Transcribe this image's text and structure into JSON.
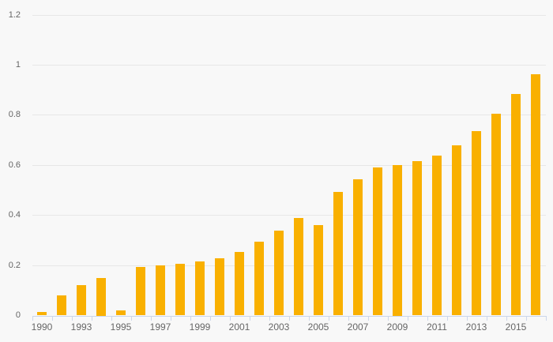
{
  "chart_data": {
    "type": "bar",
    "title": "",
    "xlabel": "",
    "ylabel": "",
    "x_categories": [
      "1990",
      "1992",
      "1993",
      "1994",
      "1995",
      "1996",
      "1997",
      "1998",
      "1999",
      "2000",
      "2001",
      "2002",
      "2003",
      "2004",
      "2005",
      "2006",
      "2007",
      "2008",
      "2009",
      "2010",
      "2011",
      "2012",
      "2013",
      "2014",
      "2015",
      "2016"
    ],
    "values": [
      0.015,
      0.08,
      0.12,
      0.15,
      0.02,
      0.195,
      0.2,
      0.205,
      0.215,
      0.23,
      0.255,
      0.295,
      0.34,
      0.39,
      0.36,
      0.495,
      0.545,
      0.59,
      0.6,
      0.615,
      0.64,
      0.68,
      0.735,
      0.805,
      0.885,
      0.965
    ],
    "x_tick_labels": [
      "1990",
      "1993",
      "1995",
      "1997",
      "1999",
      "2001",
      "2003",
      "2005",
      "2007",
      "2009",
      "2011",
      "2013",
      "2015"
    ],
    "y_tick_labels": [
      "0",
      "0.2",
      "0.4",
      "0.6",
      "0.8",
      "1",
      "1.2"
    ],
    "y_tick_values": [
      0,
      0.2,
      0.4,
      0.6,
      0.8,
      1,
      1.2
    ],
    "ylim": [
      0,
      1.2
    ],
    "grid": "horizontal",
    "legend": "none",
    "colors": {
      "bar": "#f9b000",
      "axis_line": "#ccd6eb",
      "gridline": "#e7e7e7",
      "label_text": "#666666",
      "background": "#f8f8f8"
    }
  }
}
